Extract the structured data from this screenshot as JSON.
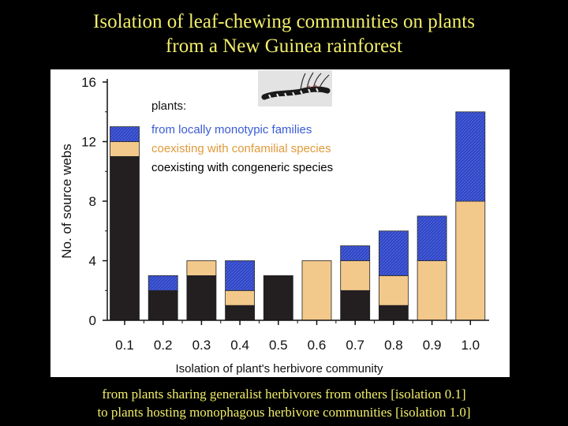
{
  "title": {
    "line1": "Isolation of leaf-chewing communities on plants",
    "line2": "from a New Guinea rainforest"
  },
  "caption": {
    "line1": "from plants sharing generalist herbivores from others [isolation 0.1]",
    "line2": "to plants hosting monophagous herbivore communities [isolation 1.0]"
  },
  "icons": {
    "inset": "caterpillar-photo"
  },
  "chart_data": {
    "type": "bar",
    "stacked": true,
    "xlabel": "Isolation of plant's herbivore community",
    "ylabel": "No. of source webs",
    "ylim": [
      0,
      16
    ],
    "yticks": [
      0,
      4,
      8,
      12,
      16
    ],
    "categories": [
      "0.1",
      "0.2",
      "0.3",
      "0.4",
      "0.5",
      "0.6",
      "0.7",
      "0.8",
      "0.9",
      "1.0"
    ],
    "legend_title": "plants:",
    "series": [
      {
        "name": "coexisting with congeneric species",
        "color": "#231f20",
        "values": [
          11,
          2,
          3,
          1,
          3,
          0,
          2,
          1,
          0,
          0
        ]
      },
      {
        "name": "coexisting with confamilial species",
        "color": "#f3c98b",
        "values": [
          1,
          0,
          1,
          1,
          0,
          4,
          2,
          2,
          4,
          8
        ]
      },
      {
        "name": "from locally monotypic families",
        "color": "#2d45c8",
        "values": [
          1,
          1,
          0,
          2,
          0,
          0,
          1,
          3,
          3,
          6
        ]
      }
    ],
    "legend": [
      {
        "name": "from locally monotypic families",
        "color": "#3a5bd6"
      },
      {
        "name": "coexisting with confamilial species",
        "color": "#e09a3a"
      },
      {
        "name": "coexisting with congeneric species",
        "color": "#000000"
      }
    ]
  }
}
